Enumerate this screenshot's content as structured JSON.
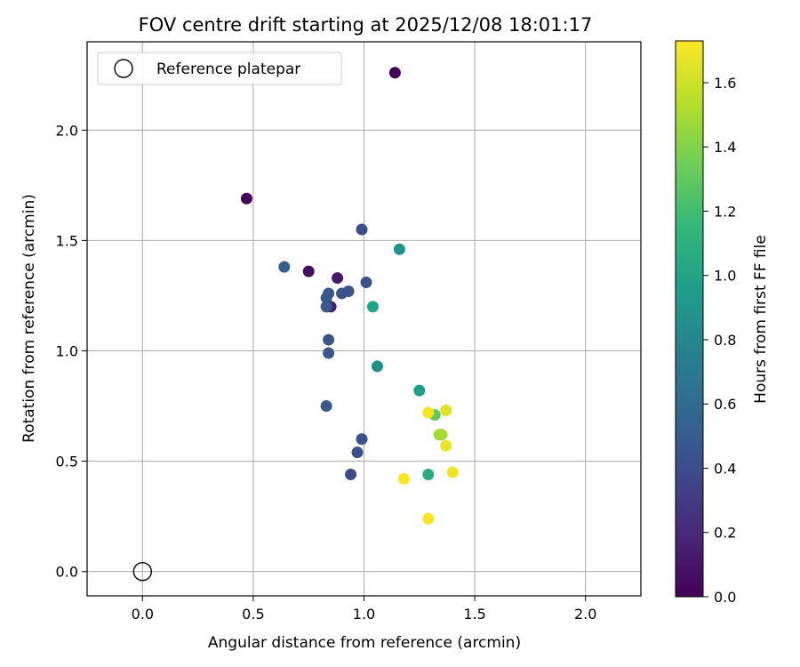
{
  "chart_data": {
    "type": "scatter",
    "title": "FOV centre drift starting at 2025/12/08 18:01:17",
    "xlabel": "Angular distance from reference (arcmin)",
    "ylabel": "Rotation from reference (arcmin)",
    "xlim": [
      -0.25,
      2.25
    ],
    "ylim": [
      -0.11,
      2.4
    ],
    "xticks": [
      0.0,
      0.5,
      1.0,
      1.5,
      2.0
    ],
    "yticks": [
      0.0,
      0.5,
      1.0,
      1.5,
      2.0
    ],
    "xtick_labels": [
      "0.0",
      "0.5",
      "1.0",
      "1.5",
      "2.0"
    ],
    "ytick_labels": [
      "0.0",
      "0.5",
      "1.0",
      "1.5",
      "2.0"
    ],
    "grid": true,
    "legend": {
      "label": "Reference platepar",
      "placement": "top-left"
    },
    "reference_point": {
      "x": 0.0,
      "y": 0.0
    },
    "colorbar": {
      "label": "Hours from first FF file",
      "colormap": "viridis",
      "range": [
        0.0,
        1.73
      ],
      "ticks": [
        0.0,
        0.2,
        0.4,
        0.6,
        0.8,
        1.0,
        1.2,
        1.4,
        1.6
      ],
      "tick_labels": [
        "0.0",
        "0.2",
        "0.4",
        "0.6",
        "0.8",
        "1.0",
        "1.2",
        "1.4",
        "1.6"
      ],
      "stops": [
        "#440154",
        "#482878",
        "#3e4a89",
        "#31688e",
        "#26828e",
        "#1f9e89",
        "#35b779",
        "#6ece58",
        "#b5de2b",
        "#fde725"
      ]
    },
    "points": [
      {
        "x": 1.14,
        "y": 2.26,
        "hours": 0.0
      },
      {
        "x": 0.47,
        "y": 1.69,
        "hours": 0.02
      },
      {
        "x": 0.75,
        "y": 1.36,
        "hours": 0.05
      },
      {
        "x": 0.88,
        "y": 1.33,
        "hours": 0.12
      },
      {
        "x": 0.85,
        "y": 1.2,
        "hours": 0.15
      },
      {
        "x": 0.99,
        "y": 1.55,
        "hours": 0.42
      },
      {
        "x": 0.64,
        "y": 1.38,
        "hours": 0.52
      },
      {
        "x": 1.01,
        "y": 1.31,
        "hours": 0.43
      },
      {
        "x": 0.93,
        "y": 1.27,
        "hours": 0.45
      },
      {
        "x": 0.9,
        "y": 1.26,
        "hours": 0.44
      },
      {
        "x": 0.84,
        "y": 1.26,
        "hours": 0.46
      },
      {
        "x": 0.83,
        "y": 1.24,
        "hours": 0.47
      },
      {
        "x": 0.83,
        "y": 1.2,
        "hours": 0.48
      },
      {
        "x": 0.84,
        "y": 1.05,
        "hours": 0.46
      },
      {
        "x": 0.84,
        "y": 0.99,
        "hours": 0.47
      },
      {
        "x": 0.83,
        "y": 0.75,
        "hours": 0.48
      },
      {
        "x": 0.99,
        "y": 0.6,
        "hours": 0.44
      },
      {
        "x": 0.97,
        "y": 0.54,
        "hours": 0.42
      },
      {
        "x": 0.94,
        "y": 0.44,
        "hours": 0.4
      },
      {
        "x": 1.16,
        "y": 1.46,
        "hours": 0.9
      },
      {
        "x": 1.06,
        "y": 0.93,
        "hours": 0.86
      },
      {
        "x": 1.04,
        "y": 1.2,
        "hours": 1.0
      },
      {
        "x": 1.25,
        "y": 0.82,
        "hours": 0.98
      },
      {
        "x": 1.29,
        "y": 0.44,
        "hours": 1.05
      },
      {
        "x": 1.32,
        "y": 0.71,
        "hours": 1.3
      },
      {
        "x": 1.34,
        "y": 0.62,
        "hours": 1.45
      },
      {
        "x": 1.35,
        "y": 0.62,
        "hours": 1.5
      },
      {
        "x": 1.29,
        "y": 0.72,
        "hours": 1.7
      },
      {
        "x": 1.37,
        "y": 0.73,
        "hours": 1.65
      },
      {
        "x": 1.37,
        "y": 0.57,
        "hours": 1.68
      },
      {
        "x": 1.4,
        "y": 0.45,
        "hours": 1.69
      },
      {
        "x": 1.18,
        "y": 0.42,
        "hours": 1.72
      },
      {
        "x": 1.29,
        "y": 0.24,
        "hours": 1.71
      }
    ]
  }
}
